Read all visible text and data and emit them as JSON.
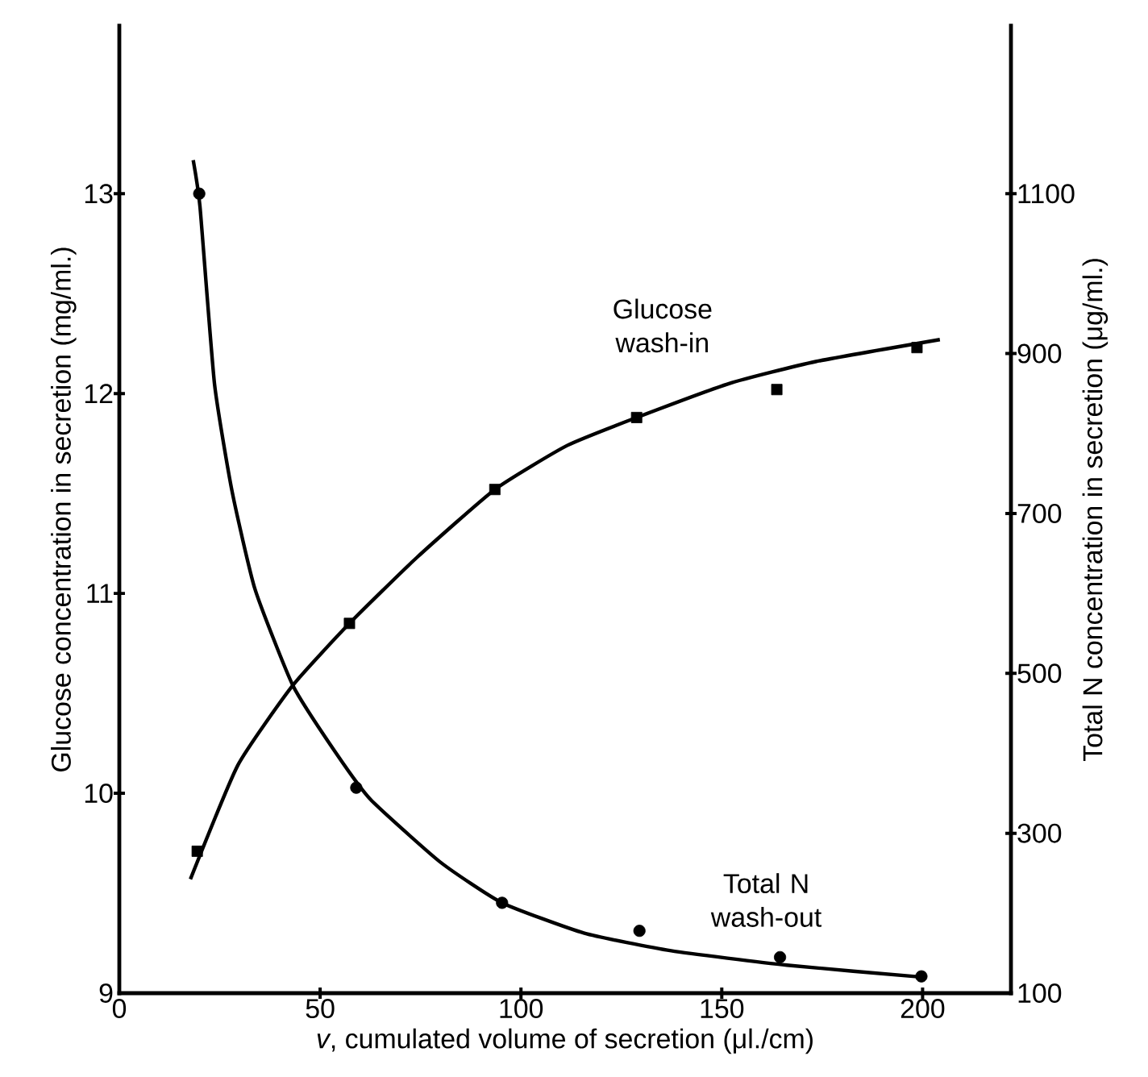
{
  "chart_data": {
    "type": "scatter",
    "xlabel": "*v*, cumulated volume of secretion (μl./cm)",
    "ylabel": "Glucose concentration in secretion (mg/ml.)",
    "y2label": "Total N concentration in secretion (μg/ml.)",
    "xlim": [
      0,
      222
    ],
    "xticks": [
      0,
      50,
      100,
      150,
      200
    ],
    "ylim": [
      9,
      13.84
    ],
    "yticks": [
      9,
      10,
      11,
      12,
      13
    ],
    "y2lim": [
      100,
      1310
    ],
    "y2ticks": [
      100,
      300,
      500,
      700,
      900,
      1100
    ],
    "series": [
      {
        "type": "line",
        "color": "#000000",
        "marker": "none",
        "x": [
          17.7,
          29.5,
          43.2,
          57.3,
          74.1,
          93.5,
          111.5,
          128.8,
          151.8,
          173.4,
          204.3
        ],
        "values": [
          9.57,
          10.14,
          10.54,
          10.85,
          11.18,
          11.52,
          11.74,
          11.88,
          12.05,
          12.16,
          12.27
        ]
      },
      {
        "name": "Glucose wash-in",
        "color": "#000000",
        "marker": "square",
        "x": [
          19.4,
          57.3,
          93.5,
          128.8,
          163.7,
          198.6
        ],
        "values": [
          9.71,
          10.85,
          11.52,
          11.88,
          12.02,
          12.23
        ]
      },
      {
        "type": "line",
        "axis": "y2",
        "color": "#000000",
        "marker": "none",
        "x": [
          18.4,
          20.1,
          23.7,
          28.1,
          33.8,
          43.2,
          54,
          62.6,
          79.9,
          95.3,
          115.8,
          137.4,
          166.2,
          200
        ],
        "values": [
          1142,
          1083,
          862,
          727,
          605,
          485,
          400,
          342,
          264,
          213,
          175,
          153,
          135,
          120
        ]
      },
      {
        "axis": "y2",
        "name": "Total N wash-out",
        "color": "#000000",
        "marker": "circle",
        "x": [
          19.9,
          59,
          95.3,
          129.5,
          164.5,
          199.7
        ],
        "values": [
          1100,
          357,
          213,
          178,
          145,
          121
        ]
      }
    ]
  }
}
